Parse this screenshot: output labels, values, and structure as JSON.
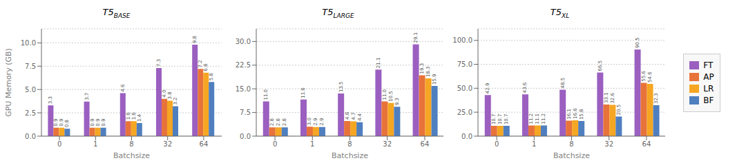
{
  "chart_data": [
    {
      "type": "bar",
      "title": "T5",
      "subtitle": "BASE",
      "xlabel": "Batchsize",
      "ylabel": "GPU Memory (GB)",
      "categories": [
        "0",
        "1",
        "8",
        "32",
        "64"
      ],
      "series": [
        {
          "name": "FT",
          "color": "#9B5FC0",
          "values": [
            3.3,
            3.7,
            4.6,
            7.3,
            9.8
          ],
          "value_labels": [
            "3.3",
            "3.7",
            "4.6",
            "7.3",
            "9.8"
          ]
        },
        {
          "name": "AP",
          "color": "#E8733A",
          "values": [
            0.9,
            0.9,
            1.6,
            4.0,
            7.2
          ],
          "value_labels": [
            "0.9",
            "0.9",
            "1.6",
            "4.0",
            "7.2"
          ]
        },
        {
          "name": "LR",
          "color": "#F5A623",
          "values": [
            0.9,
            0.9,
            1.6,
            3.8,
            6.8
          ],
          "value_labels": [
            "0.9",
            "0.9",
            "1.6",
            "3.8",
            "6.8"
          ]
        },
        {
          "name": "BF",
          "color": "#4F7FBF",
          "values": [
            0.8,
            0.9,
            1.4,
            3.2,
            5.8
          ],
          "value_labels": [
            "0.8",
            "0.9",
            "1.4",
            "3.2",
            "5.8"
          ]
        }
      ],
      "ylim": [
        0,
        11.5
      ],
      "yticks": [
        {
          "value": 0,
          "label": "0.0"
        },
        2.5,
        {
          "value": 5,
          "label": "5.0"
        },
        7.5,
        {
          "value": 10,
          "label": "10.0"
        }
      ],
      "grid": true,
      "data_labels": true
    },
    {
      "type": "bar",
      "title": "T5",
      "subtitle": "LARGE",
      "xlabel": "Batchsize",
      "categories": [
        "0",
        "1",
        "8",
        "32",
        "64"
      ],
      "series": [
        {
          "name": "FT",
          "color": "#9B5FC0",
          "values": [
            11.0,
            11.6,
            13.5,
            21.1,
            29.1
          ],
          "value_labels": [
            "11.0",
            "11.6",
            "13.5",
            "21.1",
            "29.1"
          ]
        },
        {
          "name": "AP",
          "color": "#E8733A",
          "values": [
            2.8,
            3.0,
            4.8,
            11.0,
            19.3
          ],
          "value_labels": [
            "2.8",
            "3.0",
            "4.8",
            "11.0",
            "19.3"
          ]
        },
        {
          "name": "LR",
          "color": "#F5A623",
          "values": [
            2.8,
            2.9,
            4.7,
            10.5,
            18.3
          ],
          "value_labels": [
            "2.8",
            "2.9",
            "4.7",
            "10.5",
            "18.3"
          ]
        },
        {
          "name": "BF",
          "color": "#4F7FBF",
          "values": [
            2.8,
            2.9,
            4.4,
            9.3,
            15.9
          ],
          "value_labels": [
            "2.8",
            "2.9",
            "4.4",
            "9.3",
            "15.9"
          ]
        }
      ],
      "ylim": [
        0,
        34
      ],
      "yticks": [
        {
          "value": 0,
          "label": "0.0"
        },
        7.5,
        {
          "value": 15,
          "label": "15.0"
        },
        22.5,
        {
          "value": 30,
          "label": "30.0"
        }
      ],
      "grid": true,
      "data_labels": true
    },
    {
      "type": "bar",
      "title": "T5",
      "subtitle": "XL",
      "xlabel": "Batchsize",
      "categories": [
        "0",
        "1",
        "8",
        "32",
        "64"
      ],
      "series": [
        {
          "name": "FT",
          "color": "#9B5FC0",
          "values": [
            42.9,
            43.6,
            48.5,
            66.5,
            90.5
          ],
          "value_labels": [
            "42.9",
            "43.6",
            "48.5",
            "66.5",
            "90.5"
          ]
        },
        {
          "name": "AP",
          "color": "#E8733A",
          "values": [
            10.7,
            11.2,
            16.1,
            33.1,
            55.6
          ],
          "value_labels": [
            "10.7",
            "11.2",
            "16.1",
            "33.1",
            "55.6"
          ]
        },
        {
          "name": "LR",
          "color": "#F5A623",
          "values": [
            10.7,
            11.1,
            16.6,
            32.6,
            54.6
          ],
          "value_labels": [
            "10.7",
            "11.1",
            "16.6",
            "32.6",
            "54.6"
          ]
        },
        {
          "name": "BF",
          "color": "#4F7FBF",
          "values": [
            10.7,
            11.2,
            15.8,
            20.5,
            32.3
          ],
          "value_labels": [
            "10.7",
            "11.2",
            "15.8",
            "20.5",
            "32.3"
          ]
        }
      ],
      "ylim": [
        0,
        112
      ],
      "yticks": [
        {
          "value": 0,
          "label": "0.0"
        },
        {
          "value": 25,
          "label": "25.0"
        },
        {
          "value": 50,
          "label": "50.0"
        },
        {
          "value": 75,
          "label": "75.0"
        },
        {
          "value": 100,
          "label": "100.0"
        }
      ],
      "grid": true,
      "data_labels": true,
      "legend": "right"
    }
  ]
}
